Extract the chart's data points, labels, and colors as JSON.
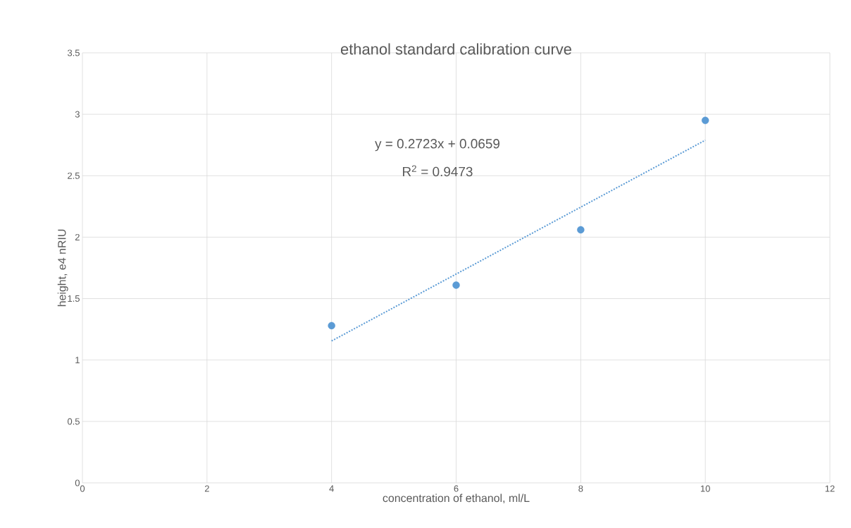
{
  "chart_data": {
    "type": "scatter",
    "title": "ethanol standard calibration curve",
    "xlabel": "concentration of ethanol, ml/L",
    "ylabel": "height, e4 nRIU",
    "annotations": [
      "y = 0.2723x + 0.0659",
      "R$^{2}$ = 0.9473"
    ],
    "xlim": [
      0,
      12
    ],
    "xticks": [
      0,
      2,
      4,
      6,
      8,
      10,
      12
    ],
    "ylim": [
      0,
      3.5
    ],
    "yticks": [
      0,
      0.5,
      1,
      1.5,
      2,
      2.5,
      3,
      3.5
    ],
    "grid": true,
    "series": [
      {
        "type": "scatter",
        "color": "#5b9bd5",
        "marker": "circle",
        "x": [
          4,
          6,
          8,
          10
        ],
        "values": [
          1.28,
          1.61,
          2.06,
          2.95
        ]
      },
      {
        "type": "line",
        "color": "#5b9bd5",
        "line_style": "dotted",
        "marker": "none",
        "x": [
          4,
          10
        ],
        "values": [
          1.155,
          2.789
        ]
      }
    ]
  }
}
